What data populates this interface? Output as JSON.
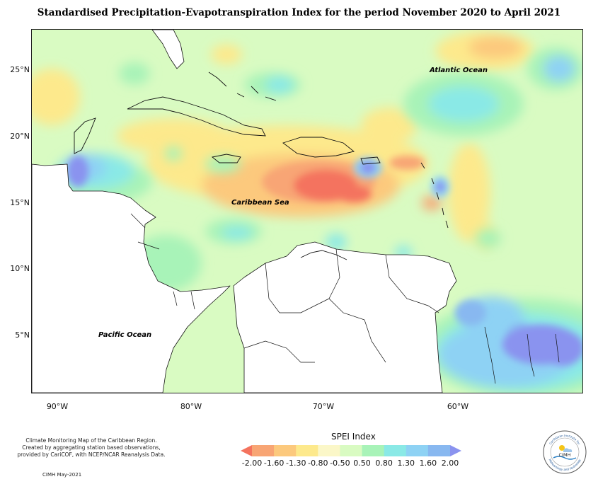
{
  "title": "Standardised Precipitation-Evapotranspiration Index for the period November 2020 to April 2021",
  "map": {
    "lat_labels": [
      "25°N",
      "20°N",
      "15°N",
      "10°N",
      "5°N"
    ],
    "lon_labels": [
      "90°W",
      "80°W",
      "70°W",
      "60°W"
    ],
    "ocean_labels": {
      "atlantic": "Atlantic Ocean",
      "caribbean": "Caribbean Sea",
      "pacific": "Pacific Ocean"
    }
  },
  "credits": {
    "line1": "Climate Monitoring Map of the Caribbean Region.",
    "line2": "Created by aggregating station based observations,",
    "line3": "provided by CariCOF, with NCEP/NCAR Reanalysis Data.",
    "date": "CIMH May-2021"
  },
  "legend": {
    "title": "SPEI Index",
    "ticks": [
      "-2.00",
      "-1.60",
      "-1.30",
      "-0.80",
      "-0.50",
      "0.50",
      "0.80",
      "1.30",
      "1.60",
      "2.00"
    ],
    "colors": [
      "#f4735e",
      "#f8a574",
      "#fcc97d",
      "#fde98c",
      "#fbf7c8",
      "#d9fbc2",
      "#a8f3b8",
      "#8ae9e6",
      "#8ed2f4",
      "#88b8f0",
      "#8a93ef"
    ]
  },
  "logo": {
    "top_text": "Caribbean Institute for",
    "center_text": "CIMH",
    "bottom_text": "Meteorology and Hydrology"
  }
}
